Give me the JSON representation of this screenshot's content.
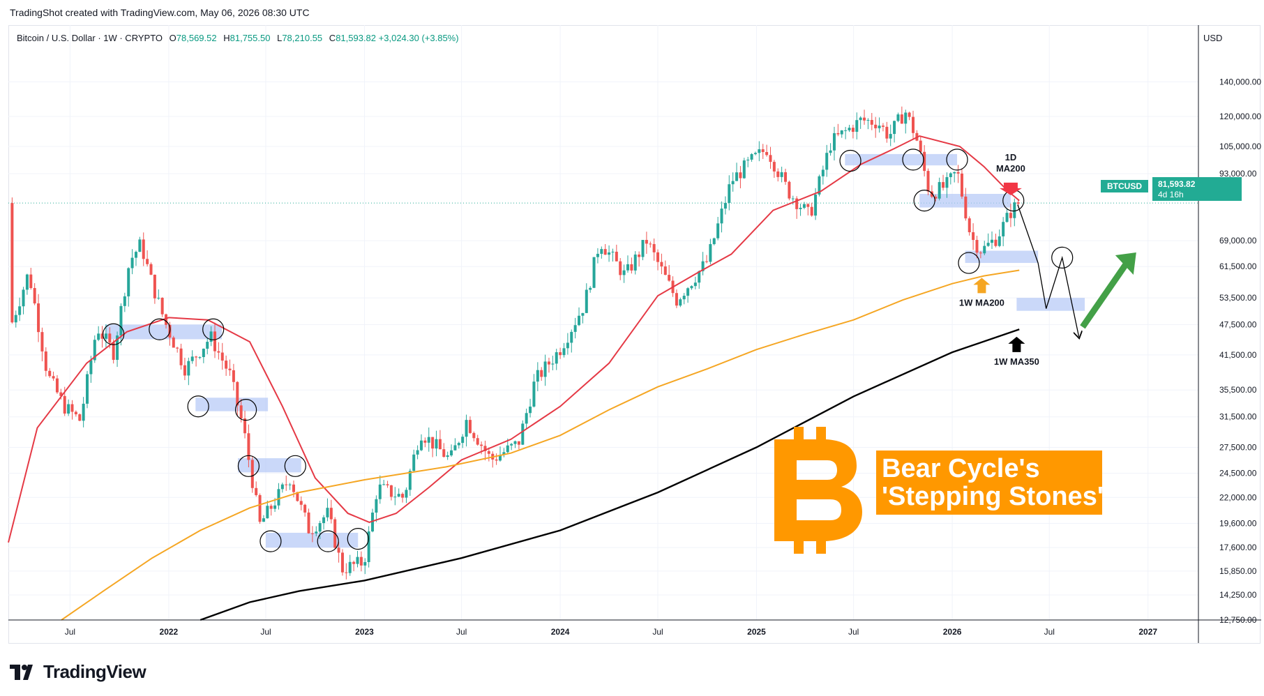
{
  "header": {
    "created_by": "TradingShot created with TradingView.com, May 06, 2026 08:30 UTC"
  },
  "legend": {
    "symbol": "Bitcoin / U.S. Dollar · 1W · CRYPTO",
    "open_label": "O",
    "open": "78,569.52",
    "high_label": "H",
    "high": "81,755.50",
    "low_label": "L",
    "low": "78,210.55",
    "close_label": "C",
    "close": "81,593.82",
    "change": "+3,024.30 (+3.85%)"
  },
  "currency": "USD",
  "price_tag": {
    "symbol": "BTCUSD",
    "price": "81,593.82",
    "countdown": "4d 16h"
  },
  "annotations": {
    "ma200_1d": [
      "1D",
      "MA200"
    ],
    "ma200_1w": "1W MA200",
    "ma350_1w": "1W MA350",
    "title": [
      "Bear Cycle's",
      "'Stepping Stones'"
    ],
    "bitcoin_logo": "bitcoin-logo"
  },
  "footer": {
    "brand": "TradingView"
  },
  "colors": {
    "up": "#26a69a",
    "down": "#ef5350",
    "ma200_1d": "#e53945",
    "ma200_1w": "#f5a623",
    "ma350_1w": "#000000",
    "accent": "#ff9800",
    "zone": "#b3c7f7",
    "arrow_green": "#43a047"
  },
  "chart_data": {
    "type": "candlestick",
    "title": "Bitcoin / U.S. Dollar · 1W · CRYPTO",
    "y_scale": "log",
    "ylim": [
      12750,
      145000
    ],
    "y_ticks": [
      140000,
      120000,
      105000,
      93000,
      81593.82,
      69000,
      61500,
      53500,
      47500,
      41500,
      35500,
      31500,
      27500,
      24500,
      22000,
      19600,
      17600,
      15850,
      14250,
      12750
    ],
    "y_tick_labels": [
      "140,000.00",
      "120,000.00",
      "105,000.00",
      "93,000.00",
      "",
      "69,000.00",
      "61,500.00",
      "53,500.00",
      "47,500.00",
      "41,500.00",
      "35,500.00",
      "31,500.00",
      "27,500.00",
      "24,500.00",
      "22,000.00",
      "19,600.00",
      "17,600.00",
      "15,850.00",
      "14,250.00",
      "12,750.00"
    ],
    "x_range": [
      "2021-03-08",
      "2027-04-05"
    ],
    "x_ticks": [
      {
        "date": "2021-07-01",
        "label": "Jul",
        "bold": false
      },
      {
        "date": "2022-01-01",
        "label": "2022",
        "bold": true
      },
      {
        "date": "2022-07-01",
        "label": "Jul",
        "bold": false
      },
      {
        "date": "2023-01-01",
        "label": "2023",
        "bold": true
      },
      {
        "date": "2023-07-01",
        "label": "Jul",
        "bold": false
      },
      {
        "date": "2024-01-01",
        "label": "2024",
        "bold": true
      },
      {
        "date": "2024-07-01",
        "label": "Jul",
        "bold": false
      },
      {
        "date": "2025-01-01",
        "label": "2025",
        "bold": true
      },
      {
        "date": "2025-07-01",
        "label": "Jul",
        "bold": false
      },
      {
        "date": "2026-01-01",
        "label": "2026",
        "bold": true
      },
      {
        "date": "2026-07-01",
        "label": "Jul",
        "bold": false
      },
      {
        "date": "2027-01-01",
        "label": "2027",
        "bold": true
      }
    ],
    "price_path": [
      [
        "2021-03-15",
        48000
      ],
      [
        "2021-04-15",
        60000
      ],
      [
        "2021-05-20",
        38000
      ],
      [
        "2021-06-20",
        33000
      ],
      [
        "2021-07-20",
        31000
      ],
      [
        "2021-08-20",
        47000
      ],
      [
        "2021-09-20",
        42000
      ],
      [
        "2021-10-20",
        63000
      ],
      [
        "2021-11-10",
        68000
      ],
      [
        "2021-12-01",
        57000
      ],
      [
        "2021-12-25",
        48000
      ],
      [
        "2022-02-01",
        39000
      ],
      [
        "2022-03-20",
        45000
      ],
      [
        "2022-04-25",
        38000
      ],
      [
        "2022-05-20",
        30000
      ],
      [
        "2022-06-20",
        19500
      ],
      [
        "2022-08-15",
        24000
      ],
      [
        "2022-09-20",
        19000
      ],
      [
        "2022-10-25",
        20500
      ],
      [
        "2022-11-20",
        16000
      ],
      [
        "2022-12-31",
        16500
      ],
      [
        "2023-01-25",
        23000
      ],
      [
        "2023-03-15",
        22000
      ],
      [
        "2023-04-15",
        29500
      ],
      [
        "2023-06-10",
        26000
      ],
      [
        "2023-07-10",
        31000
      ],
      [
        "2023-08-25",
        26000
      ],
      [
        "2023-10-15",
        28000
      ],
      [
        "2023-11-15",
        37000
      ],
      [
        "2023-12-31",
        42500
      ],
      [
        "2024-02-15",
        52000
      ],
      [
        "2024-03-15",
        69000
      ],
      [
        "2024-05-01",
        59000
      ],
      [
        "2024-06-10",
        69000
      ],
      [
        "2024-08-05",
        53000
      ],
      [
        "2024-10-01",
        63000
      ],
      [
        "2024-11-15",
        90000
      ],
      [
        "2024-12-20",
        98000
      ],
      [
        "2025-01-20",
        104000
      ],
      [
        "2025-03-01",
        86000
      ],
      [
        "2025-04-10",
        77000
      ],
      [
        "2025-05-20",
        107000
      ],
      [
        "2025-07-15",
        118000
      ],
      [
        "2025-08-15",
        117000
      ],
      [
        "2025-09-05",
        110000
      ],
      [
        "2025-10-05",
        123000
      ],
      [
        "2025-10-25",
        110000
      ],
      [
        "2025-11-20",
        85000
      ],
      [
        "2025-12-20",
        88000
      ],
      [
        "2026-01-10",
        94000
      ],
      [
        "2026-02-05",
        70000
      ],
      [
        "2026-02-25",
        66000
      ],
      [
        "2026-03-25",
        70000
      ],
      [
        "2026-04-20",
        78500
      ],
      [
        "2026-05-04",
        81593.82
      ]
    ],
    "series": [
      {
        "name": "1D MA200",
        "color": "#e53945",
        "points": [
          [
            "2021-03-08",
            18000
          ],
          [
            "2021-05-01",
            30000
          ],
          [
            "2021-08-01",
            40000
          ],
          [
            "2021-10-15",
            46000
          ],
          [
            "2022-01-01",
            49000
          ],
          [
            "2022-03-15",
            48500
          ],
          [
            "2022-06-01",
            44000
          ],
          [
            "2022-08-01",
            33000
          ],
          [
            "2022-10-01",
            24000
          ],
          [
            "2022-12-01",
            20500
          ],
          [
            "2023-01-10",
            19700
          ],
          [
            "2023-03-01",
            20500
          ],
          [
            "2023-05-01",
            23000
          ],
          [
            "2023-07-01",
            26000
          ],
          [
            "2023-10-01",
            28500
          ],
          [
            "2024-01-01",
            33000
          ],
          [
            "2024-04-01",
            40000
          ],
          [
            "2024-07-01",
            54000
          ],
          [
            "2024-09-15",
            60000
          ],
          [
            "2024-11-15",
            65000
          ],
          [
            "2025-02-01",
            79000
          ],
          [
            "2025-05-01",
            86000
          ],
          [
            "2025-07-15",
            97000
          ],
          [
            "2025-09-15",
            104000
          ],
          [
            "2025-11-01",
            110000
          ],
          [
            "2026-01-15",
            105000
          ],
          [
            "2026-03-01",
            96000
          ],
          [
            "2026-04-15",
            86000
          ],
          [
            "2026-05-06",
            82500
          ]
        ]
      },
      {
        "name": "1W MA200",
        "color": "#f5a623",
        "points": [
          [
            "2021-06-15",
            12750
          ],
          [
            "2021-09-01",
            14500
          ],
          [
            "2021-12-01",
            16800
          ],
          [
            "2022-03-01",
            19000
          ],
          [
            "2022-06-01",
            21000
          ],
          [
            "2022-09-01",
            22500
          ],
          [
            "2023-01-01",
            23800
          ],
          [
            "2023-06-01",
            25200
          ],
          [
            "2023-10-01",
            26800
          ],
          [
            "2024-01-01",
            29000
          ],
          [
            "2024-04-01",
            32500
          ],
          [
            "2024-07-01",
            36000
          ],
          [
            "2024-10-01",
            39000
          ],
          [
            "2025-01-01",
            42500
          ],
          [
            "2025-04-01",
            45500
          ],
          [
            "2025-07-01",
            48500
          ],
          [
            "2025-10-01",
            53000
          ],
          [
            "2026-01-01",
            57000
          ],
          [
            "2026-03-01",
            59000
          ],
          [
            "2026-05-06",
            60500
          ]
        ]
      },
      {
        "name": "1W MA350",
        "color": "#000000",
        "points": [
          [
            "2022-03-01",
            12750
          ],
          [
            "2022-06-01",
            13800
          ],
          [
            "2022-09-01",
            14500
          ],
          [
            "2023-01-01",
            15200
          ],
          [
            "2023-07-01",
            16800
          ],
          [
            "2024-01-01",
            19000
          ],
          [
            "2024-07-01",
            22500
          ],
          [
            "2025-01-01",
            27500
          ],
          [
            "2025-07-01",
            34500
          ],
          [
            "2026-01-01",
            42000
          ],
          [
            "2026-05-06",
            46500
          ]
        ]
      }
    ]
  }
}
